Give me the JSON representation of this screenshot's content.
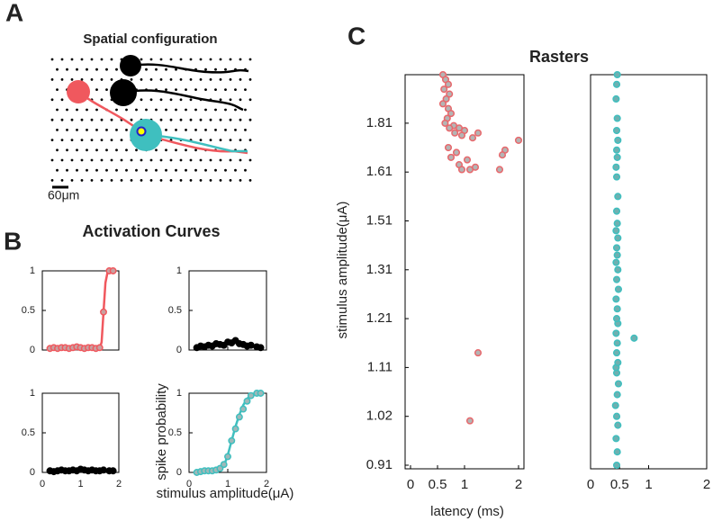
{
  "panel_labels": [
    "A",
    "B",
    "C"
  ],
  "spatial": {
    "title": "Spatial configuration",
    "scale_label": "60μm"
  },
  "chart_data": [
    {
      "type": "activation",
      "title": "Activation Curves",
      "color": "#f0585e",
      "marker_fill": "#c8a0a0",
      "xlim": [
        0,
        2
      ],
      "xticks": [
        0,
        1,
        2
      ],
      "ylim": [
        0,
        1
      ],
      "yticks": [
        0,
        0.5,
        1
      ],
      "x": [
        0.2,
        0.3,
        0.4,
        0.5,
        0.6,
        0.7,
        0.8,
        0.9,
        1.0,
        1.1,
        1.2,
        1.3,
        1.4,
        1.5,
        1.6,
        1.75,
        1.85
      ],
      "values": [
        0.02,
        0.03,
        0.02,
        0.03,
        0.03,
        0.02,
        0.03,
        0.04,
        0.03,
        0.02,
        0.03,
        0.03,
        0.02,
        0.03,
        0.48,
        1,
        1
      ],
      "fit": {
        "x": [
          0.2,
          1.5,
          1.55,
          1.6,
          1.65,
          1.7,
          1.75,
          1.85
        ],
        "values": [
          0.02,
          0.02,
          0.1,
          0.48,
          0.85,
          0.97,
          1,
          1
        ]
      }
    },
    {
      "type": "activation",
      "color": "#000000",
      "marker_fill": "#000000",
      "xlim": [
        0,
        2
      ],
      "xticks": [
        0,
        1,
        2
      ],
      "ylim": [
        0,
        1
      ],
      "yticks": [
        0,
        0.5,
        1
      ],
      "x": [
        0.2,
        0.3,
        0.4,
        0.5,
        0.6,
        0.7,
        0.8,
        0.9,
        1.0,
        1.1,
        1.2,
        1.3,
        1.4,
        1.5,
        1.6,
        1.75,
        1.85
      ],
      "values": [
        0.03,
        0.05,
        0.04,
        0.06,
        0.05,
        0.08,
        0.07,
        0.06,
        0.1,
        0.09,
        0.12,
        0.08,
        0.07,
        0.05,
        0.06,
        0.04,
        0.03
      ]
    },
    {
      "type": "activation",
      "color": "#000000",
      "marker_fill": "#000000",
      "xlim": [
        0,
        2
      ],
      "xticks": [
        0,
        1,
        2
      ],
      "ylim": [
        0,
        1
      ],
      "yticks": [
        0,
        0.5,
        1
      ],
      "x": [
        0.2,
        0.3,
        0.4,
        0.5,
        0.6,
        0.7,
        0.8,
        0.9,
        1.0,
        1.1,
        1.2,
        1.3,
        1.4,
        1.5,
        1.6,
        1.75,
        1.85
      ],
      "values": [
        0.02,
        0.01,
        0.02,
        0.03,
        0.02,
        0.02,
        0.03,
        0.02,
        0.04,
        0.03,
        0.02,
        0.03,
        0.02,
        0.02,
        0.03,
        0.02,
        0.02
      ]
    },
    {
      "type": "activation",
      "xlabel": "stimulus amplitude(μA)",
      "ylabel": "spike probability",
      "color": "#3fbfbf",
      "marker_fill": "#9fb8b8",
      "xlim": [
        0,
        2
      ],
      "xticks": [
        0,
        1,
        2
      ],
      "ylim": [
        0,
        1
      ],
      "yticks": [
        0,
        0.5,
        1
      ],
      "x": [
        0.2,
        0.3,
        0.4,
        0.5,
        0.6,
        0.7,
        0.8,
        0.9,
        1.0,
        1.1,
        1.2,
        1.3,
        1.4,
        1.5,
        1.6,
        1.75,
        1.85
      ],
      "values": [
        0,
        0.01,
        0.02,
        0.02,
        0.02,
        0.03,
        0.05,
        0.1,
        0.2,
        0.4,
        0.55,
        0.7,
        0.8,
        0.9,
        0.97,
        1,
        1
      ],
      "fit": {
        "x": [
          0.2,
          0.7,
          0.9,
          1.0,
          1.1,
          1.2,
          1.3,
          1.4,
          1.5,
          1.6,
          1.85
        ],
        "values": [
          0,
          0.01,
          0.08,
          0.22,
          0.4,
          0.58,
          0.73,
          0.85,
          0.93,
          0.98,
          1
        ]
      }
    },
    {
      "type": "raster",
      "title": "Rasters",
      "xlabel": "latency (ms)",
      "ylabel": "stimulus amplitude(μA)",
      "color": "#e8686c",
      "marker_fill": "#b4b4b4",
      "xlim": [
        -0.1,
        2.1
      ],
      "xticks": [
        0,
        0.5,
        1,
        2
      ],
      "ylim": [
        0.9,
        1.91
      ],
      "yticks": [
        0.91,
        1.02,
        1.11,
        1.21,
        1.31,
        1.51,
        1.61,
        1.81
      ],
      "x": [
        0.6,
        0.65,
        0.7,
        0.62,
        0.72,
        0.66,
        0.6,
        0.7,
        0.75,
        0.68,
        0.64,
        0.8,
        0.72,
        0.9,
        1.0,
        0.82,
        1.25,
        0.95,
        1.15,
        2.0,
        0.7,
        1.75,
        0.85,
        1.7,
        0.75,
        1.05,
        0.9,
        1.2,
        1.65,
        0.95,
        1.1,
        1.25,
        1.1
      ],
      "values": [
        1.91,
        1.9,
        1.89,
        1.88,
        1.87,
        1.86,
        1.85,
        1.84,
        1.83,
        1.82,
        1.81,
        1.8,
        1.79,
        1.79,
        1.78,
        1.77,
        1.77,
        1.76,
        1.75,
        1.74,
        1.71,
        1.7,
        1.69,
        1.68,
        1.67,
        1.66,
        1.64,
        1.63,
        1.62,
        1.62,
        1.62,
        1.14,
        1.01
      ]
    },
    {
      "type": "raster",
      "color": "#3fbfbf",
      "marker_fill": "#6fb0b0",
      "xlim": [
        0,
        2
      ],
      "xticks": [
        0,
        0.5,
        1,
        2
      ],
      "ylim": [
        0.9,
        1.91
      ],
      "x": [
        0.45,
        0.46,
        0.44,
        0.47,
        0.45,
        0.43,
        0.46,
        0.48,
        0.45,
        0.44,
        0.47,
        0.45,
        0.46,
        0.75,
        0.44,
        0.47,
        0.45,
        0.46,
        0.44,
        0.48,
        0.45,
        0.47,
        0.44,
        0.46,
        0.45,
        0.47,
        0.44,
        0.46,
        0.45,
        0.47,
        0.45,
        0.44,
        0.46,
        0.45,
        0.47,
        0.45,
        0.46,
        0.44,
        0.45,
        0.46
      ],
      "values": [
        0.91,
        0.94,
        0.97,
        1.0,
        1.02,
        1.04,
        1.06,
        1.08,
        1.1,
        1.11,
        1.12,
        1.14,
        1.16,
        1.17,
        1.18,
        1.2,
        1.21,
        1.23,
        1.25,
        1.27,
        1.29,
        1.31,
        1.34,
        1.37,
        1.4,
        1.44,
        1.47,
        1.5,
        1.53,
        1.56,
        1.6,
        1.63,
        1.67,
        1.7,
        1.74,
        1.78,
        1.82,
        1.86,
        1.89,
        1.91
      ]
    }
  ]
}
